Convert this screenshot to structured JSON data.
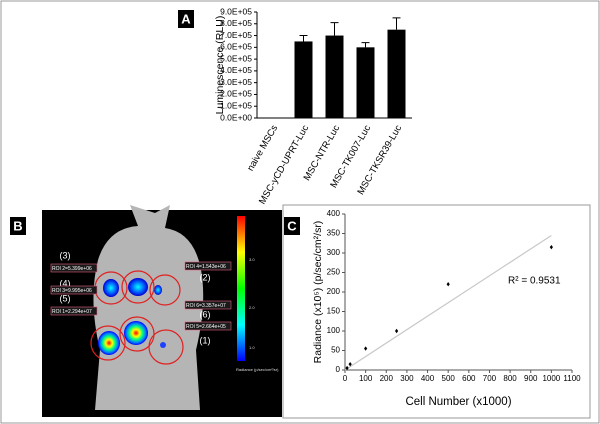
{
  "chart_data": [
    {
      "type": "bar",
      "panel": "A",
      "ylabel": "Luminescence (RLU)",
      "categories": [
        "naive MSCs",
        "MSC-yCD-UPRT-Luc",
        "MSC-NTR-Luc",
        "MSC-TK007-Luc",
        "MSC-TKSR39-Luc"
      ],
      "values": [
        0,
        650000,
        700000,
        600000,
        750000
      ],
      "errors": [
        0,
        50000,
        110000,
        40000,
        100000
      ],
      "color": "#000000",
      "ylim": [
        0,
        900000
      ],
      "yticks": [
        {
          "value": 0,
          "label": "0.0E+00"
        },
        {
          "value": 100000,
          "label": "1.0E+05"
        },
        {
          "value": 200000,
          "label": "2.0E+05"
        },
        {
          "value": 300000,
          "label": "3.0E+05"
        },
        {
          "value": 400000,
          "label": "4.0E+05"
        },
        {
          "value": 500000,
          "label": "5.0E+05"
        },
        {
          "value": 600000,
          "label": "6.0E+05"
        },
        {
          "value": 700000,
          "label": "7.0E+05"
        },
        {
          "value": 800000,
          "label": "8.0E+05"
        },
        {
          "value": 900000,
          "label": "9.0E+05"
        }
      ]
    },
    {
      "type": "scatter",
      "panel": "C",
      "xlabel": "Cell Number (x1000)",
      "ylabel": "Radiance (x10⁵) (p/sec/cm²/sr)",
      "x": [
        10,
        25,
        100,
        250,
        500,
        1000
      ],
      "values": [
        5,
        15,
        55,
        100,
        220,
        315
      ],
      "color": "#000000",
      "trendline": {
        "x": [
          0,
          1000
        ],
        "values": [
          0,
          345
        ],
        "color": "#c8c8c8"
      },
      "annotation": "R² = 0.9531",
      "xlim": [
        0,
        1100
      ],
      "xticks": [
        0,
        100,
        200,
        300,
        400,
        500,
        600,
        700,
        800,
        900,
        1000,
        1100
      ],
      "ylim": [
        0,
        400
      ],
      "yticks": [
        0,
        50,
        100,
        150,
        200,
        250,
        300,
        350,
        400
      ]
    }
  ],
  "image_panel": {
    "panel": "B",
    "scale_unit": "x10⁶",
    "scale_ticks": [
      "3.0",
      "2.0",
      "1.0"
    ],
    "scale_caption": "Radiance (p/sec/cm²/sr)",
    "regions": [
      "(3)",
      "(4)",
      "(5)",
      "(2)",
      "(6)",
      "(1)"
    ],
    "roi_labels": [
      "ROI 2=5.399e+06",
      "ROI 3=9.995e+06",
      "ROI 1=2.294e+07",
      "ROI 4=1.543e+06",
      "ROI 6=3.357e+07",
      "ROI 5=2.664e+05"
    ]
  }
}
